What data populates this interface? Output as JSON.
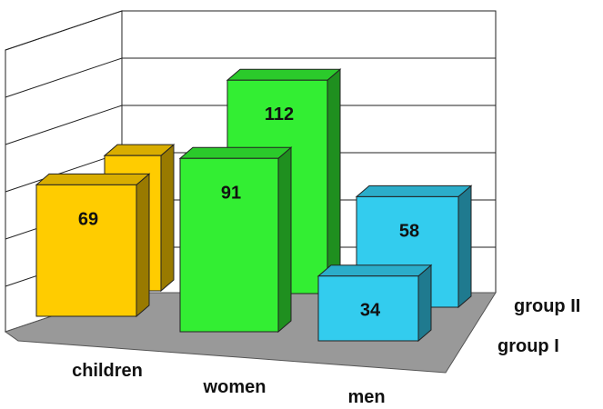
{
  "chart_data": {
    "type": "bar",
    "title": "",
    "xlabel": "",
    "ylabel": "",
    "categories": [
      "children",
      "women",
      "men"
    ],
    "series": [
      {
        "name": "group I",
        "values": [
          69,
          91,
          34
        ]
      },
      {
        "name": "group II",
        "values": [
          71,
          112,
          58
        ]
      }
    ],
    "colors": {
      "children": "#ffcc00",
      "women": "#33ee33",
      "men": "#33ccee",
      "floor": "#999999"
    },
    "ylim": [
      0,
      125
    ],
    "grid": true,
    "legend": "none"
  }
}
